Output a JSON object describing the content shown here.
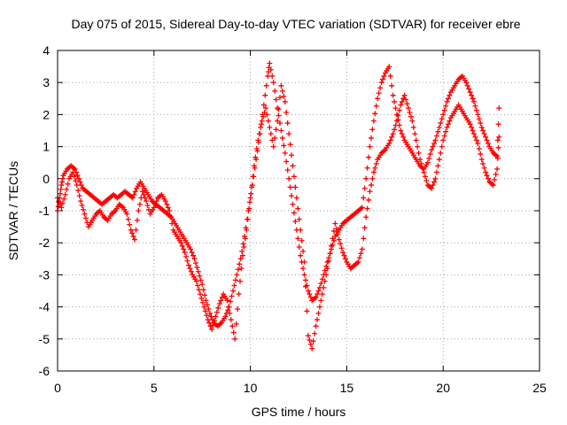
{
  "chart_data": {
    "type": "scatter",
    "title": "Day 075 of 2015, Sidereal Day-to-day VTEC variation (SDTVAR) for receiver ebre",
    "xlabel": "GPS time / hours",
    "ylabel": "SDTVAR / TECUs",
    "xlim": [
      0,
      25
    ],
    "ylim": [
      -6,
      4
    ],
    "xticks": [
      "0",
      "5",
      "10",
      "15",
      "20",
      "25"
    ],
    "yticks": [
      "-6",
      "-5",
      "-4",
      "-3",
      "-2",
      "-1",
      "0",
      "1",
      "2",
      "3",
      "4"
    ],
    "grid": true,
    "marker": "+",
    "color": "#ff0000",
    "series": [
      {
        "values_xy": [
          [
            0.0,
            -1.0
          ],
          [
            0.1,
            -0.6
          ],
          [
            0.2,
            -0.2
          ],
          [
            0.3,
            0.1
          ],
          [
            0.5,
            0.3
          ],
          [
            0.7,
            0.4
          ],
          [
            0.9,
            0.3
          ],
          [
            1.1,
            0.0
          ],
          [
            1.3,
            -0.3
          ],
          [
            1.5,
            -0.4
          ],
          [
            1.7,
            -0.5
          ],
          [
            1.9,
            -0.6
          ],
          [
            2.1,
            -0.7
          ],
          [
            2.3,
            -0.8
          ],
          [
            2.5,
            -0.7
          ],
          [
            2.7,
            -0.6
          ],
          [
            2.9,
            -0.5
          ],
          [
            3.1,
            -0.6
          ],
          [
            3.3,
            -0.5
          ],
          [
            3.5,
            -0.4
          ],
          [
            3.7,
            -0.5
          ],
          [
            3.9,
            -0.6
          ],
          [
            4.1,
            -0.3
          ],
          [
            4.3,
            -0.1
          ],
          [
            4.5,
            -0.3
          ],
          [
            4.7,
            -0.5
          ],
          [
            4.9,
            -0.7
          ],
          [
            5.1,
            -0.8
          ],
          [
            5.3,
            -0.9
          ],
          [
            5.5,
            -1.0
          ],
          [
            5.7,
            -1.1
          ],
          [
            5.9,
            -1.2
          ],
          [
            6.1,
            -1.4
          ],
          [
            6.3,
            -1.6
          ],
          [
            6.5,
            -1.8
          ],
          [
            6.7,
            -2.0
          ],
          [
            6.9,
            -2.2
          ],
          [
            7.1,
            -2.5
          ],
          [
            7.3,
            -2.9
          ],
          [
            7.5,
            -3.3
          ],
          [
            7.7,
            -3.8
          ],
          [
            7.9,
            -4.2
          ],
          [
            8.1,
            -4.5
          ],
          [
            8.3,
            -4.6
          ],
          [
            8.5,
            -4.5
          ],
          [
            8.7,
            -4.3
          ],
          [
            8.9,
            -4.0
          ],
          [
            9.1,
            -3.5
          ],
          [
            9.3,
            -3.0
          ],
          [
            9.5,
            -2.5
          ],
          [
            9.7,
            -1.8
          ],
          [
            9.9,
            -1.0
          ],
          [
            10.1,
            -0.2
          ],
          [
            10.3,
            0.6
          ],
          [
            10.5,
            1.4
          ],
          [
            10.7,
            2.3
          ],
          [
            10.9,
            3.2
          ],
          [
            11.0,
            3.6
          ],
          [
            11.2,
            3.0
          ],
          [
            11.4,
            2.2
          ],
          [
            11.6,
            1.5
          ],
          [
            11.8,
            0.8
          ],
          [
            12.0,
            0.0
          ],
          [
            12.2,
            -0.8
          ],
          [
            12.4,
            -1.6
          ],
          [
            12.6,
            -2.4
          ],
          [
            12.8,
            -3.0
          ],
          [
            13.0,
            -3.5
          ],
          [
            13.2,
            -3.8
          ],
          [
            13.4,
            -3.7
          ],
          [
            13.6,
            -3.4
          ],
          [
            13.8,
            -3.0
          ],
          [
            14.0,
            -2.6
          ],
          [
            14.2,
            -2.2
          ],
          [
            14.4,
            -1.8
          ],
          [
            14.6,
            -1.6
          ],
          [
            14.8,
            -1.4
          ],
          [
            15.0,
            -1.3
          ],
          [
            15.2,
            -1.2
          ],
          [
            15.4,
            -1.1
          ],
          [
            15.6,
            -1.0
          ],
          [
            15.8,
            -0.9
          ],
          [
            16.0,
            0.0
          ],
          [
            16.2,
            1.0
          ],
          [
            16.4,
            1.8
          ],
          [
            16.6,
            2.5
          ],
          [
            16.8,
            3.0
          ],
          [
            17.0,
            3.3
          ],
          [
            17.2,
            3.5
          ],
          [
            17.4,
            2.6
          ],
          [
            17.6,
            2.0
          ],
          [
            17.8,
            1.5
          ],
          [
            18.0,
            1.2
          ],
          [
            18.2,
            1.0
          ],
          [
            18.4,
            0.8
          ],
          [
            18.6,
            0.6
          ],
          [
            18.8,
            0.4
          ],
          [
            19.0,
            0.3
          ],
          [
            19.2,
            0.5
          ],
          [
            19.4,
            0.9
          ],
          [
            19.6,
            1.2
          ],
          [
            19.8,
            1.6
          ],
          [
            20.0,
            2.0
          ],
          [
            20.2,
            2.4
          ],
          [
            20.4,
            2.7
          ],
          [
            20.6,
            2.9
          ],
          [
            20.8,
            3.1
          ],
          [
            21.0,
            3.2
          ],
          [
            21.2,
            3.0
          ],
          [
            21.4,
            2.7
          ],
          [
            21.6,
            2.4
          ],
          [
            21.8,
            2.0
          ],
          [
            22.0,
            1.6
          ],
          [
            22.2,
            1.3
          ],
          [
            22.4,
            1.0
          ],
          [
            22.6,
            0.8
          ],
          [
            22.8,
            0.7
          ],
          [
            22.9,
            2.2
          ]
        ]
      },
      {
        "values_xy": [
          [
            0.0,
            -0.6
          ],
          [
            0.2,
            -0.9
          ],
          [
            0.4,
            -0.5
          ],
          [
            0.6,
            0.0
          ],
          [
            0.8,
            0.2
          ],
          [
            1.0,
            -0.2
          ],
          [
            1.2,
            -0.7
          ],
          [
            1.4,
            -1.1
          ],
          [
            1.6,
            -1.5
          ],
          [
            1.8,
            -1.3
          ],
          [
            2.0,
            -1.1
          ],
          [
            2.2,
            -1.0
          ],
          [
            2.4,
            -1.2
          ],
          [
            2.6,
            -1.3
          ],
          [
            2.8,
            -1.1
          ],
          [
            3.0,
            -1.0
          ],
          [
            3.2,
            -0.8
          ],
          [
            3.4,
            -0.9
          ],
          [
            3.6,
            -1.1
          ],
          [
            3.8,
            -1.6
          ],
          [
            4.0,
            -1.9
          ],
          [
            4.2,
            -1.0
          ],
          [
            4.4,
            -0.4
          ],
          [
            4.6,
            -0.7
          ],
          [
            4.8,
            -1.1
          ],
          [
            5.0,
            -0.9
          ],
          [
            5.2,
            -0.6
          ],
          [
            5.4,
            -0.5
          ],
          [
            5.6,
            -0.7
          ],
          [
            5.8,
            -1.0
          ],
          [
            6.0,
            -1.6
          ],
          [
            6.2,
            -1.8
          ],
          [
            6.4,
            -2.0
          ],
          [
            6.6,
            -2.3
          ],
          [
            6.8,
            -2.7
          ],
          [
            7.0,
            -3.0
          ],
          [
            7.2,
            -3.2
          ],
          [
            7.4,
            -3.6
          ],
          [
            7.6,
            -4.0
          ],
          [
            7.8,
            -4.4
          ],
          [
            8.0,
            -4.7
          ],
          [
            8.2,
            -4.3
          ],
          [
            8.4,
            -3.9
          ],
          [
            8.6,
            -3.6
          ],
          [
            8.8,
            -3.8
          ],
          [
            9.0,
            -4.4
          ],
          [
            9.2,
            -5.0
          ],
          [
            9.4,
            -3.6
          ],
          [
            9.6,
            -2.4
          ],
          [
            9.8,
            -1.6
          ],
          [
            10.0,
            -0.6
          ],
          [
            10.2,
            0.4
          ],
          [
            10.4,
            1.2
          ],
          [
            10.6,
            1.8
          ],
          [
            10.8,
            2.2
          ],
          [
            11.0,
            1.6
          ],
          [
            11.2,
            1.0
          ],
          [
            11.4,
            1.8
          ],
          [
            11.6,
            2.9
          ],
          [
            11.8,
            2.4
          ],
          [
            12.0,
            1.4
          ],
          [
            12.2,
            0.4
          ],
          [
            12.4,
            -0.6
          ],
          [
            12.6,
            -1.6
          ],
          [
            12.8,
            -2.6
          ],
          [
            13.0,
            -4.9
          ],
          [
            13.2,
            -5.3
          ],
          [
            13.4,
            -4.6
          ],
          [
            13.6,
            -4.0
          ],
          [
            13.8,
            -3.4
          ],
          [
            14.0,
            -2.8
          ],
          [
            14.2,
            -2.1
          ],
          [
            14.4,
            -1.4
          ],
          [
            14.6,
            -1.9
          ],
          [
            14.8,
            -2.3
          ],
          [
            15.0,
            -2.6
          ],
          [
            15.2,
            -2.8
          ],
          [
            15.4,
            -2.7
          ],
          [
            15.6,
            -2.6
          ],
          [
            15.8,
            -2.2
          ],
          [
            16.0,
            -1.2
          ],
          [
            16.2,
            -0.4
          ],
          [
            16.4,
            0.2
          ],
          [
            16.6,
            0.6
          ],
          [
            16.8,
            0.8
          ],
          [
            17.0,
            0.9
          ],
          [
            17.2,
            1.1
          ],
          [
            17.4,
            1.4
          ],
          [
            17.6,
            1.8
          ],
          [
            17.8,
            2.3
          ],
          [
            18.0,
            2.6
          ],
          [
            18.2,
            2.2
          ],
          [
            18.4,
            1.8
          ],
          [
            18.6,
            1.2
          ],
          [
            18.8,
            0.6
          ],
          [
            19.0,
            0.2
          ],
          [
            19.2,
            -0.2
          ],
          [
            19.4,
            -0.3
          ],
          [
            19.6,
            0.0
          ],
          [
            19.8,
            0.6
          ],
          [
            20.0,
            1.2
          ],
          [
            20.2,
            1.6
          ],
          [
            20.4,
            1.9
          ],
          [
            20.6,
            2.1
          ],
          [
            20.8,
            2.3
          ],
          [
            21.0,
            2.1
          ],
          [
            21.2,
            1.9
          ],
          [
            21.4,
            1.7
          ],
          [
            21.6,
            1.4
          ],
          [
            21.8,
            1.1
          ],
          [
            22.0,
            0.6
          ],
          [
            22.2,
            0.2
          ],
          [
            22.4,
            -0.1
          ],
          [
            22.6,
            -0.2
          ],
          [
            22.8,
            0.3
          ],
          [
            22.9,
            1.3
          ]
        ]
      }
    ]
  }
}
